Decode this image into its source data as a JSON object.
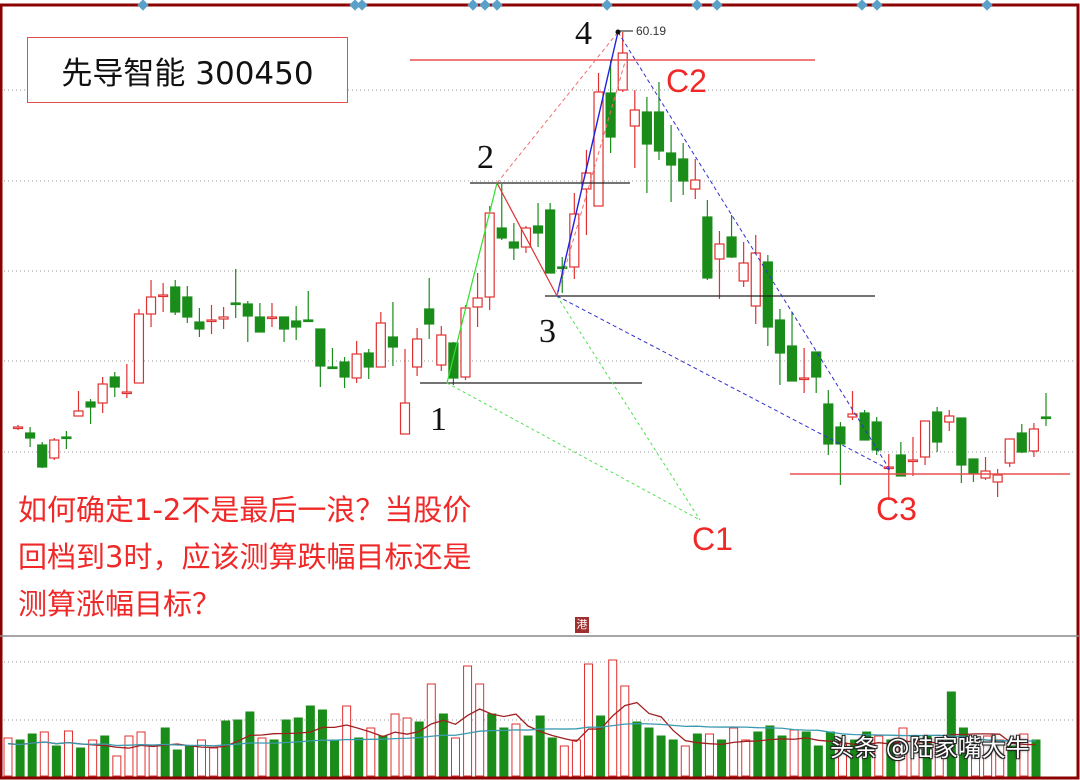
{
  "title": "先导智能 300450",
  "question_lines": [
    "如何确定1-2不是最后一浪？当股价",
    "回档到3时，应该测算跌幅目标还是",
    "测算涨幅目标？"
  ],
  "watermark": "头条 @陆家嘴大牛",
  "seal_text": "港",
  "colors": {
    "up": "#e03030",
    "down": "#1a8c1a",
    "frame": "#8b0000",
    "annotation_text": "#f02828",
    "vol_ma_short": "#a02020",
    "vol_ma_long": "#3a9ab0"
  },
  "chart_data": {
    "type": "candlestick",
    "grid": true,
    "peak_label": "60.19",
    "candles_ohlc": [
      [
        40.44,
        40.54,
        40.29,
        40.44
      ],
      [
        40.14,
        40.44,
        39.44,
        39.89
      ],
      [
        39.54,
        39.69,
        38.39,
        38.44
      ],
      [
        38.89,
        39.89,
        38.79,
        39.79
      ],
      [
        39.94,
        40.24,
        39.34,
        39.89
      ],
      [
        40.99,
        42.24,
        40.99,
        41.24
      ],
      [
        41.69,
        41.84,
        40.59,
        41.44
      ],
      [
        41.64,
        42.94,
        41.14,
        42.59
      ],
      [
        42.94,
        43.19,
        41.94,
        42.44
      ],
      [
        42.14,
        43.59,
        41.89,
        42.19
      ],
      [
        42.64,
        46.34,
        42.64,
        46.09
      ],
      [
        46.09,
        47.79,
        45.44,
        46.94
      ],
      [
        46.99,
        47.64,
        46.19,
        47.04
      ],
      [
        47.44,
        47.79,
        46.04,
        46.19
      ],
      [
        46.94,
        47.49,
        45.64,
        45.94
      ],
      [
        45.69,
        46.39,
        44.94,
        45.34
      ],
      [
        45.74,
        46.54,
        45.09,
        45.79
      ],
      [
        45.84,
        46.44,
        45.34,
        45.94
      ],
      [
        46.64,
        48.34,
        45.89,
        46.59
      ],
      [
        46.59,
        46.74,
        44.69,
        45.99
      ],
      [
        45.94,
        46.64,
        45.19,
        45.19
      ],
      [
        45.89,
        46.64,
        45.44,
        45.94
      ],
      [
        45.94,
        45.94,
        44.69,
        45.34
      ],
      [
        45.74,
        46.49,
        44.79,
        45.44
      ],
      [
        45.79,
        47.24,
        45.74,
        45.74
      ],
      [
        45.34,
        45.34,
        42.44,
        43.49
      ],
      [
        43.44,
        44.39,
        43.39,
        43.39
      ],
      [
        43.69,
        43.94,
        42.39,
        42.94
      ],
      [
        42.89,
        44.74,
        42.64,
        44.09
      ],
      [
        44.14,
        44.34,
        42.84,
        43.44
      ],
      [
        43.44,
        46.19,
        43.44,
        45.64
      ],
      [
        44.94,
        46.69,
        43.49,
        44.44
      ],
      [
        40.09,
        44.34,
        40.09,
        41.64
      ],
      [
        43.44,
        45.39,
        42.99,
        44.84
      ],
      [
        46.34,
        47.89,
        44.84,
        45.59
      ],
      [
        43.54,
        45.49,
        43.24,
        45.04
      ],
      [
        44.64,
        44.69,
        42.54,
        42.89
      ],
      [
        42.94,
        46.54,
        42.79,
        46.39
      ],
      [
        46.44,
        48.14,
        45.44,
        46.89
      ],
      [
        46.94,
        51.49,
        46.29,
        51.14
      ],
      [
        50.39,
        52.59,
        49.79,
        49.89
      ],
      [
        49.69,
        50.64,
        48.79,
        49.39
      ],
      [
        49.44,
        50.49,
        49.14,
        50.39
      ],
      [
        50.49,
        51.64,
        49.44,
        50.14
      ],
      [
        51.29,
        51.64,
        48.14,
        48.14
      ],
      [
        48.44,
        48.94,
        47.14,
        48.39
      ],
      [
        48.44,
        52.14,
        47.84,
        51.09
      ],
      [
        52.34,
        54.29,
        50.04,
        53.14
      ],
      [
        51.49,
        58.14,
        51.49,
        57.19
      ],
      [
        57.14,
        58.79,
        54.14,
        54.94
      ],
      [
        57.29,
        60.19,
        57.19,
        59.14
      ],
      [
        55.49,
        57.29,
        53.39,
        56.29
      ],
      [
        56.19,
        56.94,
        52.14,
        54.59
      ],
      [
        56.19,
        57.69,
        53.79,
        54.24
      ],
      [
        54.14,
        55.54,
        51.69,
        53.54
      ],
      [
        53.84,
        54.64,
        52.04,
        52.74
      ],
      [
        52.34,
        53.84,
        51.84,
        52.79
      ],
      [
        50.94,
        51.79,
        47.79,
        47.89
      ],
      [
        48.84,
        50.24,
        46.84,
        49.59
      ],
      [
        49.94,
        51.04,
        48.89,
        48.94
      ],
      [
        47.74,
        49.69,
        47.44,
        48.64
      ],
      [
        46.49,
        50.04,
        45.59,
        49.14
      ],
      [
        48.69,
        49.04,
        44.49,
        45.44
      ],
      [
        45.79,
        46.34,
        42.54,
        44.14
      ],
      [
        44.49,
        46.19,
        42.74,
        42.74
      ],
      [
        42.84,
        44.39,
        42.14,
        42.89
      ],
      [
        44.19,
        44.19,
        42.14,
        42.94
      ],
      [
        41.59,
        42.29,
        39.04,
        39.59
      ],
      [
        40.44,
        40.69,
        37.54,
        39.59
      ],
      [
        40.94,
        42.24,
        40.79,
        41.09
      ],
      [
        41.14,
        41.29,
        39.79,
        39.79
      ],
      [
        40.69,
        40.94,
        39.04,
        39.29
      ],
      [
        38.39,
        39.09,
        36.79,
        38.44
      ],
      [
        39.04,
        39.69,
        37.99,
        37.99
      ],
      [
        38.74,
        39.94,
        37.99,
        38.79
      ],
      [
        38.94,
        40.74,
        38.54,
        40.74
      ],
      [
        41.19,
        41.44,
        39.19,
        39.69
      ],
      [
        40.69,
        41.29,
        40.24,
        40.99
      ],
      [
        40.89,
        40.89,
        37.64,
        38.54
      ],
      [
        38.84,
        38.84,
        37.69,
        38.14
      ],
      [
        37.89,
        38.94,
        37.79,
        38.24
      ],
      [
        37.69,
        38.34,
        36.94,
        38.04
      ],
      [
        38.64,
        39.84,
        38.44,
        39.84
      ],
      [
        40.14,
        40.59,
        39.14,
        39.19
      ],
      [
        39.24,
        40.64,
        38.94,
        40.34
      ],
      [
        40.94,
        42.14,
        40.49,
        40.89
      ]
    ],
    "volume": [
      38,
      36,
      42,
      44,
      30,
      45,
      28,
      36,
      40,
      20,
      40,
      44,
      30,
      48,
      26,
      30,
      36,
      28,
      55,
      56,
      64,
      38,
      36,
      56,
      58,
      70,
      66,
      36,
      70,
      38,
      48,
      40,
      62,
      58,
      54,
      92,
      62,
      38,
      110,
      92,
      62,
      48,
      52,
      40,
      60,
      38,
      30,
      36,
      112,
      60,
      116,
      90,
      54,
      48,
      40,
      36,
      30,
      42,
      42,
      36,
      48,
      36,
      44,
      50,
      40,
      46,
      44,
      30,
      44,
      32,
      36,
      44,
      40,
      36,
      48,
      34,
      40,
      38,
      84,
      48,
      38,
      40,
      36,
      30,
      42,
      36
    ],
    "wave_labels": [
      "1",
      "2",
      "3",
      "4"
    ],
    "target_labels": [
      "C1",
      "C2",
      "C3"
    ]
  }
}
